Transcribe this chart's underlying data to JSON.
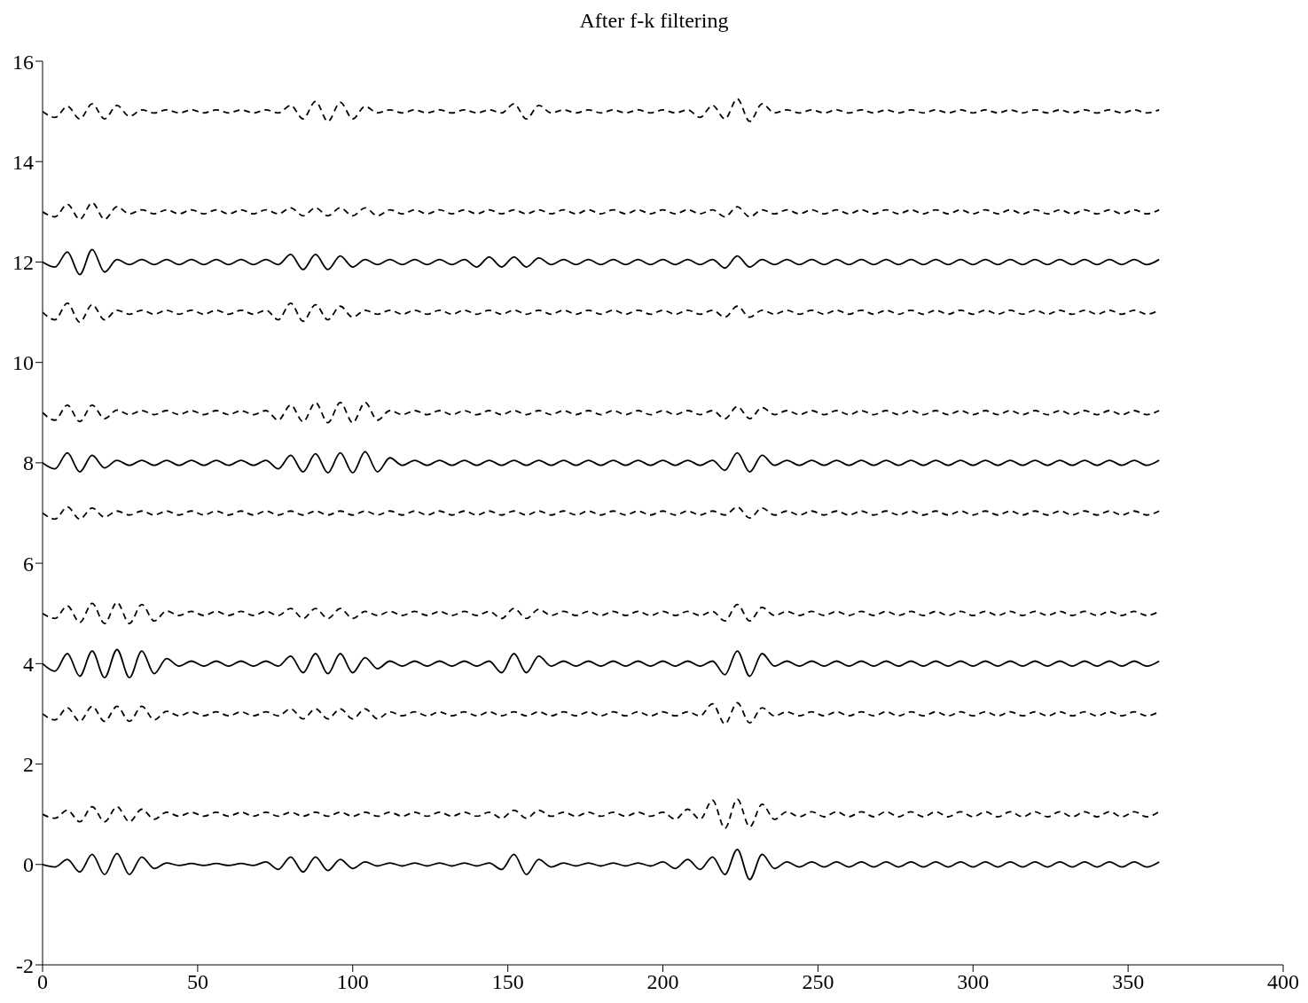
{
  "chart_data": {
    "type": "line",
    "title": "After f-k filtering",
    "xlim": [
      0,
      400
    ],
    "xticks": [
      0,
      50,
      100,
      150,
      200,
      250,
      300,
      350,
      400
    ],
    "ylim": [
      -2,
      16
    ],
    "yticks": [
      -2,
      0,
      2,
      4,
      6,
      8,
      10,
      12,
      14,
      16
    ],
    "grid": false,
    "legend": false,
    "marker": "none",
    "x": [
      0,
      4,
      8,
      12,
      16,
      20,
      24,
      28,
      32,
      36,
      40,
      44,
      48,
      52,
      56,
      60,
      64,
      68,
      72,
      76,
      80,
      84,
      88,
      92,
      96,
      100,
      104,
      108,
      112,
      116,
      120,
      124,
      128,
      132,
      136,
      140,
      144,
      148,
      152,
      156,
      160,
      164,
      168,
      172,
      176,
      180,
      184,
      188,
      192,
      196,
      200,
      204,
      208,
      212,
      216,
      220,
      224,
      228,
      232,
      236,
      240,
      244,
      248,
      252,
      256,
      260,
      264,
      268,
      272,
      276,
      280,
      284,
      288,
      292,
      296,
      300,
      304,
      308,
      312,
      316,
      320,
      324,
      328,
      332,
      336,
      340,
      344,
      348,
      352,
      356,
      360
    ],
    "series": [
      {
        "color": "#000000",
        "line_style": "solid",
        "values": [
          0,
          -0.05,
          0.1,
          -0.15,
          0.2,
          -0.2,
          0.22,
          -0.2,
          0.15,
          -0.08,
          0.03,
          -0.02,
          0.02,
          -0.02,
          0.02,
          -0.02,
          0.02,
          -0.02,
          0.05,
          -0.1,
          0.15,
          -0.15,
          0.15,
          -0.12,
          0.1,
          -0.08,
          0.05,
          -0.03,
          0.03,
          -0.03,
          0.03,
          -0.03,
          0.03,
          -0.03,
          0.03,
          -0.03,
          0.03,
          -0.1,
          0.2,
          -0.2,
          0.1,
          -0.05,
          0.03,
          -0.03,
          0.03,
          -0.03,
          0.03,
          -0.03,
          0.03,
          -0.03,
          0.05,
          -0.08,
          0.1,
          -0.1,
          0.15,
          -0.2,
          0.3,
          -0.3,
          0.2,
          -0.08,
          0.05,
          -0.05,
          0.05,
          -0.05,
          0.05,
          -0.05,
          0.05,
          -0.05,
          0.05,
          -0.05,
          0.05,
          -0.05,
          0.05,
          -0.05,
          0.05,
          -0.05,
          0.05,
          -0.05,
          0.05,
          -0.05,
          0.05,
          -0.05,
          0.05,
          -0.05,
          0.05,
          -0.05,
          0.05,
          -0.05,
          0.05,
          -0.05,
          0.05
        ]
      },
      {
        "color": "#000000",
        "line_style": "dashed",
        "values": [
          1,
          0.92,
          1.08,
          0.85,
          1.15,
          0.85,
          1.15,
          0.85,
          1.1,
          0.9,
          1.04,
          0.96,
          1.04,
          0.96,
          1.04,
          0.96,
          1.04,
          0.96,
          1.04,
          0.96,
          1.04,
          0.96,
          1.04,
          0.96,
          1.04,
          0.96,
          1.04,
          0.96,
          1.04,
          0.96,
          1.04,
          0.96,
          1.04,
          0.96,
          1.04,
          0.96,
          1.04,
          0.92,
          1.08,
          0.92,
          1.08,
          0.96,
          1.04,
          0.96,
          1.04,
          0.96,
          1.04,
          0.96,
          1.04,
          0.96,
          1.04,
          0.9,
          1.1,
          0.9,
          1.28,
          0.72,
          1.3,
          0.75,
          1.2,
          0.9,
          1.05,
          0.95,
          1.05,
          0.95,
          1.05,
          0.95,
          1.05,
          0.95,
          1.05,
          0.95,
          1.05,
          0.95,
          1.05,
          0.95,
          1.05,
          0.95,
          1.05,
          0.95,
          1.05,
          0.95,
          1.05,
          0.95,
          1.05,
          0.95,
          1.05,
          0.95,
          1.05,
          0.95,
          1.05,
          0.95,
          1.05
        ]
      },
      {
        "color": "#000000",
        "line_style": "dashed",
        "values": [
          3,
          2.88,
          3.12,
          2.85,
          3.15,
          2.85,
          3.15,
          2.85,
          3.15,
          2.88,
          3.05,
          2.96,
          3.04,
          2.96,
          3.04,
          2.96,
          3.04,
          2.96,
          3.04,
          2.96,
          3.1,
          2.9,
          3.1,
          2.9,
          3.1,
          2.9,
          3.1,
          2.9,
          3.04,
          2.96,
          3.04,
          2.96,
          3.04,
          2.96,
          3.04,
          2.96,
          3.04,
          2.96,
          3.04,
          2.96,
          3.04,
          2.96,
          3.04,
          2.96,
          3.04,
          2.96,
          3.04,
          2.96,
          3.04,
          2.96,
          3.04,
          2.96,
          3.04,
          2.96,
          3.2,
          2.8,
          3.22,
          2.82,
          3.12,
          2.96,
          3.04,
          2.96,
          3.04,
          2.96,
          3.04,
          2.96,
          3.04,
          2.96,
          3.04,
          2.96,
          3.04,
          2.96,
          3.04,
          2.96,
          3.04,
          2.96,
          3.04,
          2.96,
          3.04,
          2.96,
          3.04,
          2.96,
          3.04,
          2.96,
          3.04,
          2.96,
          3.04,
          2.96,
          3.04,
          2.96,
          3.04
        ]
      },
      {
        "color": "#000000",
        "line_style": "solid",
        "values": [
          4,
          3.85,
          4.2,
          3.75,
          4.25,
          3.72,
          4.28,
          3.72,
          4.25,
          3.8,
          4.1,
          3.95,
          4.05,
          3.95,
          4.05,
          3.95,
          4.05,
          3.95,
          4.05,
          3.95,
          4.15,
          3.82,
          4.2,
          3.8,
          4.2,
          3.82,
          4.12,
          3.9,
          4.05,
          3.95,
          4.05,
          3.95,
          4.05,
          3.95,
          4.05,
          3.95,
          4.05,
          3.82,
          4.2,
          3.82,
          4.15,
          3.95,
          4.05,
          3.95,
          4.05,
          3.95,
          4.05,
          3.95,
          4.05,
          3.95,
          4.05,
          3.95,
          4.05,
          3.95,
          4.05,
          3.78,
          4.25,
          3.75,
          4.2,
          3.95,
          4.05,
          3.95,
          4.05,
          3.95,
          4.05,
          3.95,
          4.05,
          3.95,
          4.05,
          3.95,
          4.05,
          3.95,
          4.05,
          3.95,
          4.05,
          3.95,
          4.05,
          3.95,
          4.05,
          3.95,
          4.05,
          3.95,
          4.05,
          3.95,
          4.05,
          3.95,
          4.05,
          3.95,
          4.05,
          3.95,
          4.05
        ]
      },
      {
        "color": "#000000",
        "line_style": "dashed",
        "values": [
          5,
          4.9,
          5.15,
          4.82,
          5.2,
          4.8,
          5.22,
          4.8,
          5.18,
          4.85,
          5.05,
          4.96,
          5.04,
          4.96,
          5.04,
          4.96,
          5.04,
          4.96,
          5.04,
          4.96,
          5.1,
          4.9,
          5.1,
          4.9,
          5.1,
          4.9,
          5.04,
          4.96,
          5.04,
          4.96,
          5.04,
          4.96,
          5.04,
          4.96,
          5.04,
          4.96,
          5.04,
          4.9,
          5.1,
          4.9,
          5.08,
          4.96,
          5.04,
          4.96,
          5.04,
          4.96,
          5.04,
          4.96,
          5.04,
          4.96,
          5.04,
          4.96,
          5.04,
          4.96,
          5.04,
          4.85,
          5.18,
          4.85,
          5.12,
          4.96,
          5.04,
          4.96,
          5.04,
          4.96,
          5.04,
          4.96,
          5.04,
          4.96,
          5.04,
          4.96,
          5.04,
          4.96,
          5.04,
          4.96,
          5.04,
          4.96,
          5.04,
          4.96,
          5.04,
          4.96,
          5.04,
          4.96,
          5.04,
          4.96,
          5.04,
          4.96,
          5.04,
          4.96,
          5.04,
          4.96,
          5.04
        ]
      },
      {
        "color": "#000000",
        "line_style": "dashed",
        "values": [
          7,
          6.88,
          7.12,
          6.88,
          7.1,
          6.92,
          7.04,
          6.96,
          7.04,
          6.96,
          7.04,
          6.96,
          7.04,
          6.96,
          7.04,
          6.96,
          7.04,
          6.96,
          7.04,
          6.96,
          7.04,
          6.96,
          7.04,
          6.96,
          7.04,
          6.96,
          7.04,
          6.96,
          7.04,
          6.96,
          7.04,
          6.96,
          7.04,
          6.96,
          7.04,
          6.96,
          7.04,
          6.96,
          7.04,
          6.96,
          7.04,
          6.96,
          7.04,
          6.96,
          7.04,
          6.96,
          7.04,
          6.96,
          7.04,
          6.96,
          7.04,
          6.96,
          7.04,
          6.96,
          7.04,
          6.96,
          7.12,
          6.9,
          7.1,
          6.96,
          7.04,
          6.96,
          7.04,
          6.96,
          7.04,
          6.96,
          7.04,
          6.96,
          7.04,
          6.96,
          7.04,
          6.96,
          7.04,
          6.96,
          7.04,
          6.96,
          7.04,
          6.96,
          7.04,
          6.96,
          7.04,
          6.96,
          7.04,
          6.96,
          7.04,
          6.96,
          7.04,
          6.96,
          7.04,
          6.96,
          7.04
        ]
      },
      {
        "color": "#000000",
        "line_style": "solid",
        "values": [
          8,
          7.88,
          8.2,
          7.82,
          8.15,
          7.9,
          8.05,
          7.95,
          8.05,
          7.95,
          8.05,
          7.95,
          8.05,
          7.95,
          8.05,
          7.95,
          8.05,
          7.95,
          8.05,
          7.88,
          8.15,
          7.82,
          8.18,
          7.8,
          8.2,
          7.8,
          8.22,
          7.82,
          8.1,
          7.95,
          8.05,
          7.95,
          8.05,
          7.95,
          8.05,
          7.95,
          8.05,
          7.95,
          8.05,
          7.95,
          8.05,
          7.95,
          8.05,
          7.95,
          8.05,
          7.95,
          8.05,
          7.95,
          8.05,
          7.95,
          8.05,
          7.95,
          8.05,
          7.95,
          8.05,
          7.85,
          8.2,
          7.82,
          8.15,
          7.95,
          8.05,
          7.95,
          8.05,
          7.95,
          8.05,
          7.95,
          8.05,
          7.95,
          8.05,
          7.95,
          8.05,
          7.95,
          8.05,
          7.95,
          8.05,
          7.95,
          8.05,
          7.95,
          8.05,
          7.95,
          8.05,
          7.95,
          8.05,
          7.95,
          8.05,
          7.95,
          8.05,
          7.95,
          8.05,
          7.95,
          8.05
        ]
      },
      {
        "color": "#000000",
        "line_style": "dashed",
        "values": [
          9,
          8.85,
          9.15,
          8.82,
          9.15,
          8.88,
          9.05,
          8.96,
          9.04,
          8.96,
          9.04,
          8.96,
          9.04,
          8.96,
          9.04,
          8.96,
          9.04,
          8.96,
          9.04,
          8.85,
          9.15,
          8.82,
          9.2,
          8.8,
          9.2,
          8.8,
          9.2,
          8.85,
          9.04,
          8.96,
          9.04,
          8.96,
          9.04,
          8.96,
          9.04,
          8.96,
          9.04,
          8.96,
          9.04,
          8.96,
          9.04,
          8.96,
          9.04,
          8.96,
          9.04,
          8.96,
          9.04,
          8.96,
          9.04,
          8.96,
          9.04,
          8.96,
          9.04,
          8.96,
          9.04,
          8.88,
          9.12,
          8.88,
          9.1,
          8.96,
          9.04,
          8.96,
          9.04,
          8.96,
          9.04,
          8.96,
          9.04,
          8.96,
          9.04,
          8.96,
          9.04,
          8.96,
          9.04,
          8.96,
          9.04,
          8.96,
          9.04,
          8.96,
          9.04,
          8.96,
          9.04,
          8.96,
          9.04,
          8.96,
          9.04,
          8.96,
          9.04,
          8.96,
          9.04,
          8.96,
          9.04
        ]
      },
      {
        "color": "#000000",
        "line_style": "dashed",
        "values": [
          11,
          10.85,
          11.18,
          10.8,
          11.15,
          10.85,
          11.04,
          10.96,
          11.04,
          10.96,
          11.04,
          10.96,
          11.04,
          10.96,
          11.04,
          10.96,
          11.04,
          10.96,
          11.04,
          10.85,
          11.18,
          10.82,
          11.15,
          10.85,
          11.12,
          10.9,
          11.04,
          10.96,
          11.04,
          10.96,
          11.04,
          10.96,
          11.04,
          10.96,
          11.04,
          10.96,
          11.04,
          10.96,
          11.04,
          10.96,
          11.04,
          10.96,
          11.04,
          10.96,
          11.04,
          10.96,
          11.04,
          10.96,
          11.04,
          10.96,
          11.04,
          10.96,
          11.04,
          10.96,
          11.04,
          10.9,
          11.12,
          10.9,
          11.04,
          10.96,
          11.04,
          10.96,
          11.04,
          10.96,
          11.04,
          10.96,
          11.04,
          10.96,
          11.04,
          10.96,
          11.04,
          10.96,
          11.04,
          10.96,
          11.04,
          10.96,
          11.04,
          10.96,
          11.04,
          10.96,
          11.04,
          10.96,
          11.04,
          10.96,
          11.04,
          10.96,
          11.04,
          10.96,
          11.04,
          10.96,
          11.04
        ]
      },
      {
        "color": "#000000",
        "line_style": "solid",
        "values": [
          12,
          11.9,
          12.2,
          11.75,
          12.25,
          11.8,
          12.05,
          11.95,
          12.05,
          11.95,
          12.05,
          11.95,
          12.05,
          11.95,
          12.05,
          11.95,
          12.05,
          11.95,
          12.05,
          11.95,
          12.15,
          11.85,
          12.15,
          11.85,
          12.12,
          11.9,
          12.05,
          11.95,
          12.05,
          11.95,
          12.05,
          11.95,
          12.05,
          11.95,
          12.05,
          11.9,
          12.1,
          11.9,
          12.1,
          11.9,
          12.08,
          11.95,
          12.05,
          11.95,
          12.05,
          11.95,
          12.05,
          11.95,
          12.05,
          11.95,
          12.05,
          11.95,
          12.05,
          11.95,
          12.05,
          11.88,
          12.12,
          11.9,
          12.05,
          11.95,
          12.05,
          11.95,
          12.05,
          11.95,
          12.05,
          11.95,
          12.05,
          11.95,
          12.05,
          11.95,
          12.05,
          11.95,
          12.05,
          11.95,
          12.05,
          11.95,
          12.05,
          11.95,
          12.05,
          11.95,
          12.05,
          11.95,
          12.05,
          11.95,
          12.05,
          11.95,
          12.05,
          11.95,
          12.05,
          11.95,
          12.05
        ]
      },
      {
        "color": "#000000",
        "line_style": "dashed",
        "values": [
          13,
          12.9,
          13.15,
          12.85,
          13.18,
          12.85,
          13.1,
          12.96,
          13.04,
          12.96,
          13.04,
          12.96,
          13.04,
          12.96,
          13.04,
          12.96,
          13.04,
          12.96,
          13.04,
          12.96,
          13.08,
          12.92,
          13.08,
          12.92,
          13.08,
          12.92,
          13.08,
          12.92,
          13.04,
          12.96,
          13.04,
          12.96,
          13.04,
          12.96,
          13.04,
          12.96,
          13.04,
          12.96,
          13.04,
          12.96,
          13.04,
          12.96,
          13.04,
          12.96,
          13.04,
          12.96,
          13.04,
          12.96,
          13.04,
          12.96,
          13.04,
          12.96,
          13.04,
          12.96,
          13.04,
          12.9,
          13.1,
          12.9,
          13.04,
          12.96,
          13.04,
          12.96,
          13.04,
          12.96,
          13.04,
          12.96,
          13.04,
          12.96,
          13.04,
          12.96,
          13.04,
          12.96,
          13.04,
          12.96,
          13.04,
          12.96,
          13.04,
          12.96,
          13.04,
          12.96,
          13.04,
          12.96,
          13.04,
          12.96,
          13.04,
          12.96,
          13.04,
          12.96,
          13.04,
          12.96,
          13.04
        ]
      },
      {
        "color": "#000000",
        "line_style": "dashed",
        "values": [
          15,
          14.88,
          15.1,
          14.85,
          15.15,
          14.85,
          15.12,
          14.9,
          15.03,
          14.97,
          15.03,
          14.97,
          15.03,
          14.97,
          15.03,
          14.97,
          15.03,
          14.97,
          15.03,
          14.97,
          15.12,
          14.85,
          15.2,
          14.8,
          15.18,
          14.85,
          15.1,
          14.97,
          15.03,
          14.97,
          15.03,
          14.97,
          15.03,
          14.97,
          15.03,
          14.97,
          15.03,
          14.97,
          15.15,
          14.85,
          15.12,
          14.97,
          15.03,
          14.97,
          15.03,
          14.97,
          15.03,
          14.97,
          15.03,
          14.97,
          15.03,
          14.97,
          15.03,
          14.88,
          15.12,
          14.85,
          15.25,
          14.8,
          15.15,
          14.97,
          15.03,
          14.97,
          15.03,
          14.97,
          15.03,
          14.97,
          15.03,
          14.97,
          15.03,
          14.97,
          15.03,
          14.97,
          15.03,
          14.97,
          15.03,
          14.97,
          15.03,
          14.97,
          15.03,
          14.97,
          15.03,
          14.97,
          15.03,
          14.97,
          15.03,
          14.97,
          15.03,
          14.97,
          15.03,
          14.97,
          15.03
        ]
      }
    ]
  }
}
